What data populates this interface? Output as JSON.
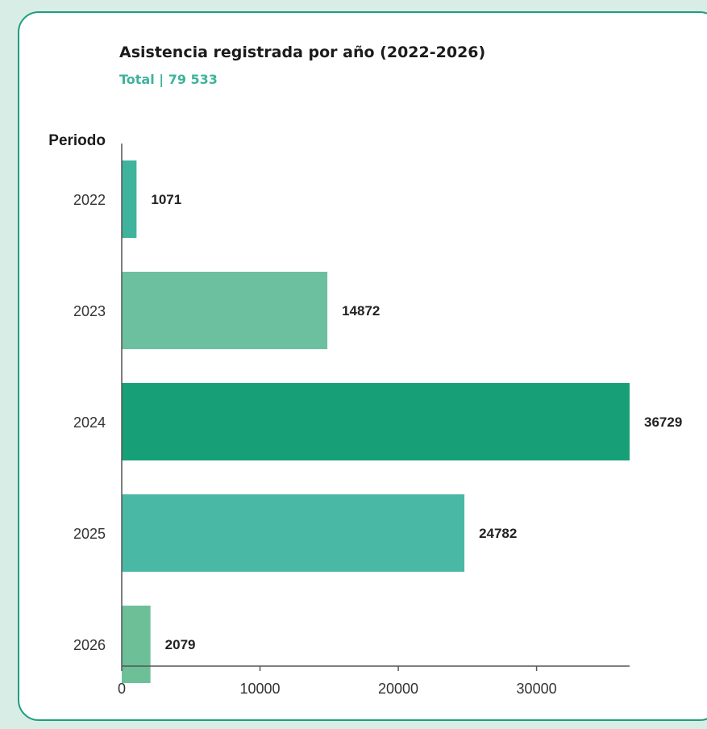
{
  "colors": {
    "background": "#d9ede7",
    "card_border": "#1f9e7b",
    "subtitle": "#3fb39b",
    "axis": "#555555"
  },
  "chart_data": {
    "type": "bar",
    "orientation": "horizontal",
    "title": "Asistencia registrada por año (2022-2026)",
    "subtitle": "Total | 79 533",
    "ylabel": "Periodo",
    "xlabel": "",
    "categories": [
      "2022",
      "2023",
      "2024",
      "2025",
      "2026"
    ],
    "values": [
      1071,
      14872,
      36729,
      24782,
      2079
    ],
    "value_labels": [
      "1071",
      "14872",
      "36729",
      "24782",
      "2079"
    ],
    "bar_colors": [
      "#3fb39b",
      "#6cc0a0",
      "#17a077",
      "#49b8a4",
      "#6dbf98"
    ],
    "xlim": [
      0,
      36729
    ],
    "xticks": [
      0,
      10000,
      20000,
      30000
    ],
    "xtick_labels": [
      "0",
      "10000",
      "20000",
      "30000"
    ],
    "grid": false,
    "legend": "none"
  }
}
